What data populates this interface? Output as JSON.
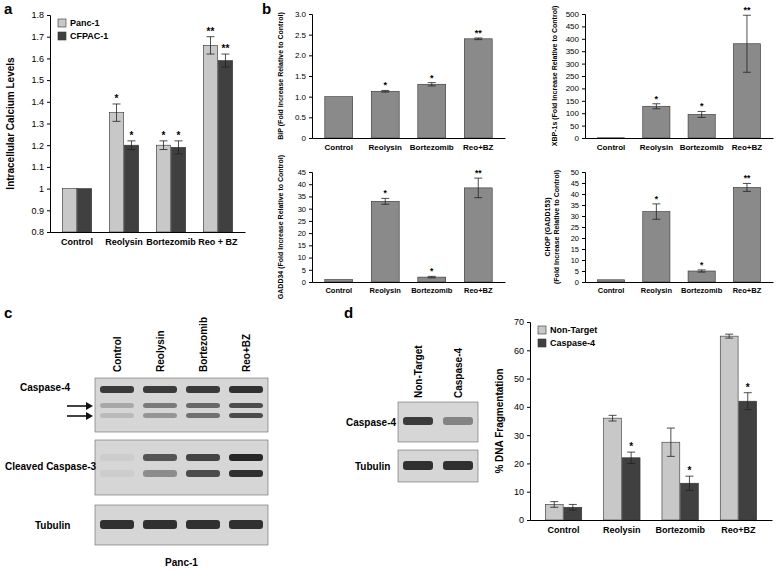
{
  "panel_labels": [
    "a",
    "b",
    "c",
    "d"
  ],
  "chart_data": [
    {
      "type": "bar",
      "ylabel": "Intracellular Calcium Levels",
      "categories": [
        "Control",
        "Reolysin",
        "Bortezomib",
        "Reo + BZ"
      ],
      "series": [
        {
          "name": "Panc-1",
          "color": "#c8c8c8",
          "values": [
            1,
            1.35,
            1.2,
            1.66
          ],
          "errors": [
            null,
            0.04,
            0.02,
            0.04
          ],
          "significance": [
            null,
            "*",
            "*",
            "**"
          ]
        },
        {
          "name": "CFPAC-1",
          "color": "#404040",
          "values": [
            1,
            1.2,
            1.19,
            1.59
          ],
          "errors": [
            null,
            0.02,
            0.03,
            0.03
          ],
          "significance": [
            null,
            "*",
            "*",
            "**"
          ]
        }
      ],
      "ylim": [
        0.8,
        1.8
      ],
      "yticks": [
        0.8,
        0.9,
        1,
        1.1,
        1.2,
        1.3,
        1.4,
        1.5,
        1.6,
        1.7,
        1.8
      ],
      "legend": "upper left"
    },
    {
      "type": "bar",
      "ylabel": [
        "BiP (Fold Increase Relative to Control)"
      ],
      "categories": [
        "Control",
        "Reolysin",
        "Bortezomib",
        "Reo+BZ"
      ],
      "values": [
        1,
        1.13,
        1.3,
        2.4
      ],
      "errors": [
        null,
        0.02,
        0.04,
        0.02
      ],
      "significance": [
        null,
        "*",
        "*",
        "**"
      ],
      "color": "#8a8a8a",
      "ylim": [
        0,
        3
      ],
      "yticks": [
        0,
        0.5,
        {
          "value": 1,
          "label": "1.0"
        },
        1.5,
        {
          "value": 2,
          "label": "2.0"
        },
        2.5,
        {
          "value": 3,
          "label": "3.0"
        }
      ]
    },
    {
      "type": "bar",
      "ylabel": [
        "XBP-1s (Fold Increase Relative to Control)"
      ],
      "categories": [
        "Control",
        "Reolysin",
        "Bortezomib",
        "Reo+BZ"
      ],
      "values": [
        1,
        128,
        95,
        380
      ],
      "errors": [
        null,
        10,
        12,
        115
      ],
      "significance": [
        null,
        "*",
        "*",
        "**"
      ],
      "color": "#8a8a8a",
      "ylim": [
        0,
        500
      ],
      "yticks": [
        0,
        50,
        100,
        150,
        200,
        250,
        300,
        350,
        400,
        450,
        500
      ]
    },
    {
      "type": "bar",
      "ylabel": [
        "GADD34 (Fold Increase Relative to Control)"
      ],
      "categories": [
        "Control",
        "Reolysin",
        "Bortezomib",
        "Reo+BZ"
      ],
      "values": [
        1,
        33,
        2,
        38.5
      ],
      "errors": [
        null,
        1.2,
        0.3,
        4
      ],
      "significance": [
        null,
        "*",
        "*",
        "**"
      ],
      "color": "#8a8a8a",
      "ylim": [
        0,
        45
      ],
      "yticks": [
        0,
        5,
        10,
        15,
        20,
        25,
        30,
        35,
        40,
        45
      ]
    },
    {
      "type": "bar",
      "ylabel": [
        "CHOP (GADD153)",
        "(Fold Increase Relative to Control)"
      ],
      "categories": [
        "Control",
        "Reolysin",
        "Bortezomib",
        "Reo+BZ"
      ],
      "values": [
        1,
        32,
        5,
        43
      ],
      "errors": [
        null,
        3.5,
        0.5,
        1.8
      ],
      "significance": [
        null,
        "*",
        "*",
        "**"
      ],
      "color": "#8a8a8a",
      "ylim": [
        0,
        50
      ],
      "yticks": [
        0,
        5,
        10,
        15,
        20,
        25,
        30,
        35,
        40,
        45,
        50
      ]
    },
    {
      "type": "bar",
      "ylabel": "% DNA Fragmentation",
      "categories": [
        "Control",
        "Reolysin",
        "Bortezomib",
        "Reo+BZ"
      ],
      "series": [
        {
          "name": "Non-Target",
          "color": "#c8c8c8",
          "values": [
            5.5,
            36,
            27.5,
            65
          ],
          "errors": [
            1,
            1,
            5,
            0.7
          ]
        },
        {
          "name": "Caspase-4",
          "color": "#404040",
          "values": [
            4.5,
            22,
            13,
            42
          ],
          "errors": [
            1,
            2,
            2.5,
            3
          ],
          "significance": [
            null,
            "*",
            "*",
            "*"
          ]
        }
      ],
      "ylim": [
        0,
        70
      ],
      "yticks": [
        0,
        10,
        20,
        30,
        40,
        50,
        60,
        70
      ],
      "legend": "upper left"
    }
  ],
  "blots": [
    {
      "lanes": [
        "Control",
        "Reolysin",
        "Bortezomib",
        "Reo+BZ"
      ],
      "rows": [
        "Caspase-4",
        "Cleaved Caspase-3",
        "Tubulin"
      ],
      "caption": "Panc-1"
    },
    {
      "lanes": [
        "Non-Target",
        "Caspase-4"
      ],
      "rows": [
        "Caspase-4",
        "Tubulin"
      ]
    }
  ]
}
